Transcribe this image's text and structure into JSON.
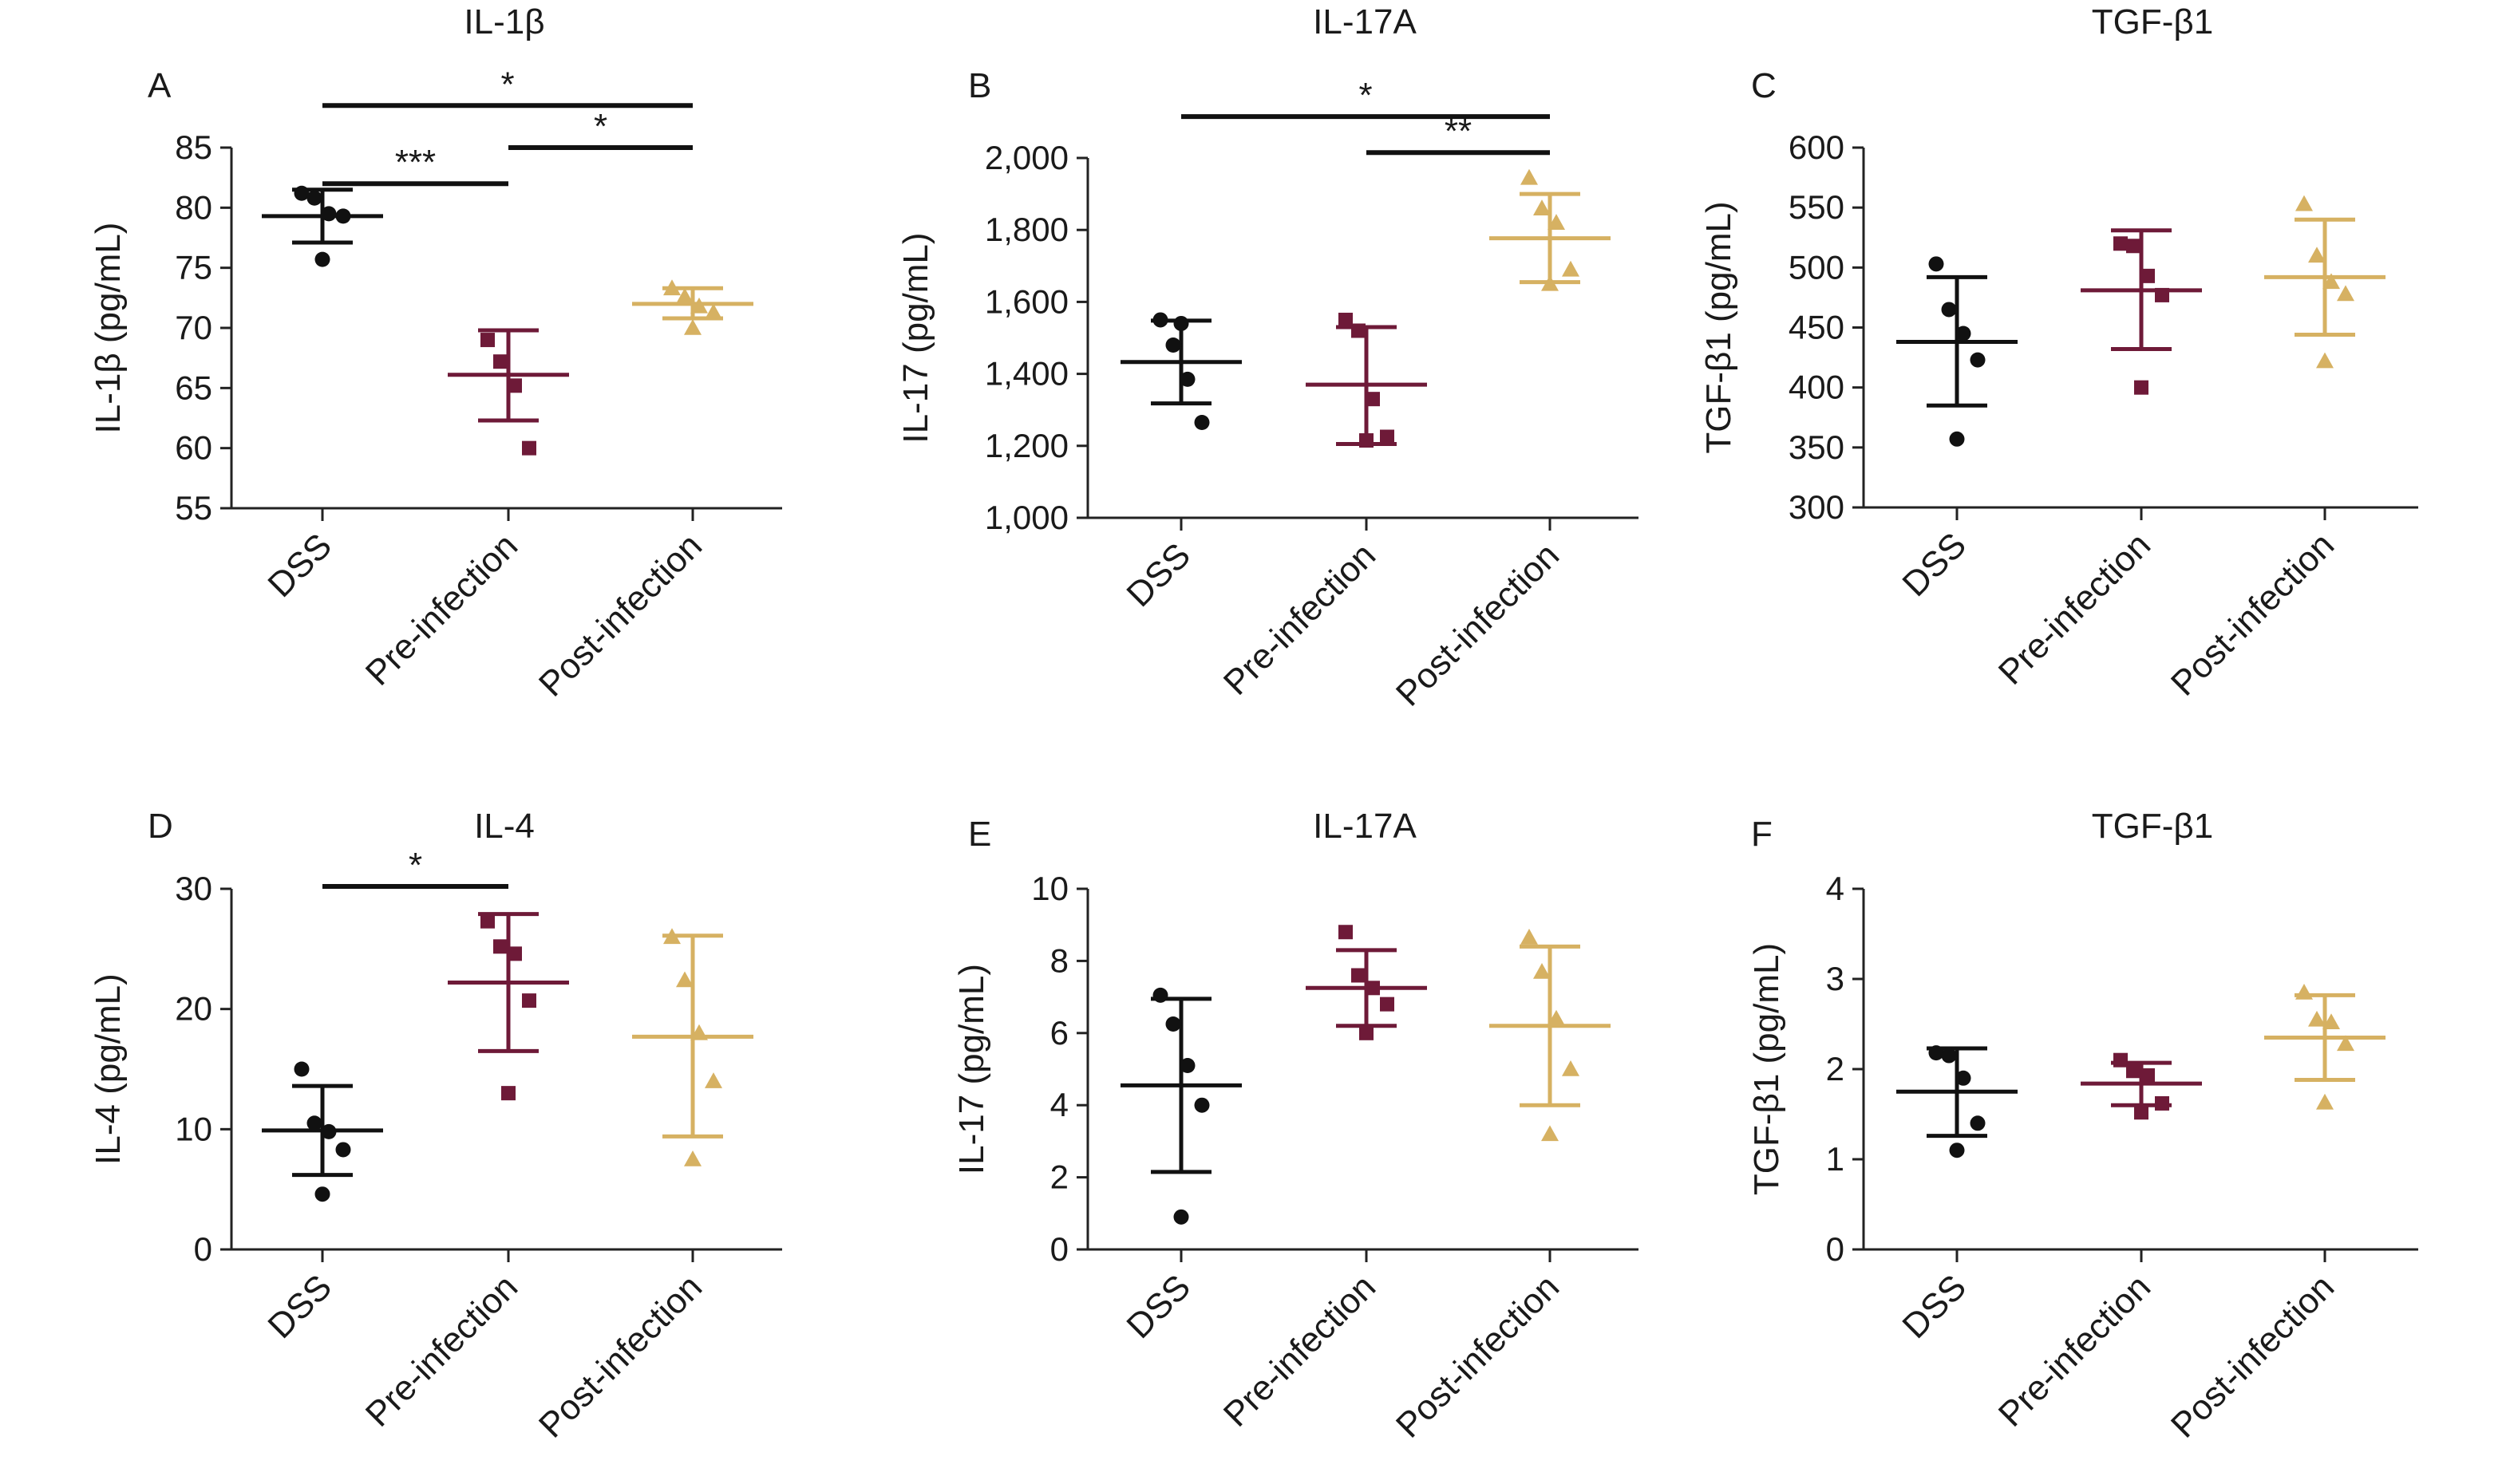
{
  "figure": {
    "colors": {
      "DSS": "#111111",
      "Pre-infection": "#6e1a38",
      "Post-infection": "#d6b162"
    },
    "markers": {
      "DSS": "circle",
      "Pre-infection": "square",
      "Post-infection": "triangle"
    }
  },
  "chart_data": [
    {
      "panel": "A",
      "title": "IL-1β",
      "type": "scatter",
      "ylabel": "IL-1β (pg/mL)",
      "ylim": [
        55,
        85
      ],
      "yticks": [
        55,
        60,
        65,
        70,
        75,
        80,
        85
      ],
      "ytick_labels": [
        "55",
        "60",
        "65",
        "70",
        "75",
        "80",
        "85"
      ],
      "categories": [
        "DSS",
        "Pre-infection",
        "Post-infection"
      ],
      "groups": [
        {
          "name": "DSS",
          "mean": 79.3,
          "sd_low": 77.1,
          "sd_high": 81.5,
          "points": [
            81.2,
            80.8,
            79.5,
            79.3,
            75.7
          ]
        },
        {
          "name": "Pre-infection",
          "mean": 66.1,
          "sd_low": 62.3,
          "sd_high": 69.8,
          "points": [
            69.0,
            67.2,
            65.2,
            60.0
          ]
        },
        {
          "name": "Post-infection",
          "mean": 72.0,
          "sd_low": 70.8,
          "sd_high": 73.3,
          "points": [
            73.3,
            72.6,
            71.8,
            71.3,
            70.0
          ]
        }
      ],
      "significance": [
        {
          "from": 0,
          "to": 1,
          "label": "***",
          "y": 82.0
        },
        {
          "from": 0,
          "to": 2,
          "label": "*",
          "y": 88.5
        },
        {
          "from": 1,
          "to": 2,
          "label": "*",
          "y": 85.0
        }
      ]
    },
    {
      "panel": "B",
      "title": "IL-17A",
      "type": "scatter",
      "ylabel": "IL-17 (pg/mL)",
      "ylim": [
        1000,
        2000
      ],
      "yticks": [
        1000,
        1200,
        1400,
        1600,
        1800,
        2000
      ],
      "ytick_labels": [
        "1,000",
        "1,200",
        "1,400",
        "1,600",
        "1,800",
        "2,000"
      ],
      "categories": [
        "DSS",
        "Pre-infection",
        "Post-infection"
      ],
      "groups": [
        {
          "name": "DSS",
          "mean": 1433,
          "sd_low": 1318,
          "sd_high": 1548,
          "points": [
            1550,
            1480,
            1385,
            1265,
            1540
          ]
        },
        {
          "name": "Pre-infection",
          "mean": 1370,
          "sd_low": 1205,
          "sd_high": 1530,
          "points": [
            1550,
            1520,
            1330,
            1225,
            1215
          ]
        },
        {
          "name": "Post-infection",
          "mean": 1777,
          "sd_low": 1655,
          "sd_high": 1900,
          "points": [
            1945,
            1860,
            1820,
            1690,
            1650
          ]
        }
      ],
      "significance": [
        {
          "from": 0,
          "to": 2,
          "label": "*",
          "y": 2115
        },
        {
          "from": 1,
          "to": 2,
          "label": "**",
          "y": 2015
        }
      ]
    },
    {
      "panel": "C",
      "title": "TGF-β1",
      "type": "scatter",
      "ylabel": "TGF-β1 (pg/mL)",
      "ylim": [
        300,
        600
      ],
      "yticks": [
        300,
        350,
        400,
        450,
        500,
        550,
        600
      ],
      "ytick_labels": [
        "300",
        "350",
        "400",
        "450",
        "500",
        "550",
        "600"
      ],
      "categories": [
        "DSS",
        "Pre-infection",
        "Post-infection"
      ],
      "groups": [
        {
          "name": "DSS",
          "mean": 438,
          "sd_low": 385,
          "sd_high": 492,
          "points": [
            503,
            465,
            445,
            423,
            357
          ]
        },
        {
          "name": "Pre-infection",
          "mean": 481,
          "sd_low": 432,
          "sd_high": 531,
          "points": [
            520,
            518,
            493,
            477,
            400
          ]
        },
        {
          "name": "Post-infection",
          "mean": 492,
          "sd_low": 444,
          "sd_high": 540,
          "points": [
            553,
            510,
            488,
            478,
            422
          ]
        }
      ],
      "significance": []
    },
    {
      "panel": "D",
      "title": "IL-4",
      "type": "scatter",
      "ylabel": "IL-4 (pg/mL)",
      "ylim": [
        0,
        30
      ],
      "yticks": [
        0,
        10,
        20,
        30
      ],
      "ytick_labels": [
        "0",
        "10",
        "20",
        "30"
      ],
      "categories": [
        "DSS",
        "Pre-infection",
        "Post-infection"
      ],
      "groups": [
        {
          "name": "DSS",
          "mean": 9.9,
          "sd_low": 6.2,
          "sd_high": 13.6,
          "points": [
            15.0,
            10.5,
            9.8,
            8.3,
            4.6
          ]
        },
        {
          "name": "Pre-infection",
          "mean": 22.2,
          "sd_low": 16.5,
          "sd_high": 27.9,
          "points": [
            27.3,
            25.2,
            24.6,
            20.7,
            13.0
          ]
        },
        {
          "name": "Post-infection",
          "mean": 17.7,
          "sd_low": 9.4,
          "sd_high": 26.1,
          "points": [
            26.0,
            22.4,
            18.0,
            14.0,
            7.5
          ]
        }
      ],
      "significance": [
        {
          "from": 0,
          "to": 1,
          "label": "*",
          "y": 30.2
        }
      ]
    },
    {
      "panel": "E",
      "title": "IL-17A",
      "type": "scatter",
      "ylabel": "IL-17 (pg/mL)",
      "ylim": [
        0,
        10
      ],
      "yticks": [
        0,
        2,
        4,
        6,
        8,
        10
      ],
      "ytick_labels": [
        "0",
        "2",
        "4",
        "6",
        "8",
        "10"
      ],
      "categories": [
        "DSS",
        "Pre-infection",
        "Post-infection"
      ],
      "groups": [
        {
          "name": "DSS",
          "mean": 4.55,
          "sd_low": 2.15,
          "sd_high": 6.95,
          "points": [
            7.05,
            6.25,
            5.1,
            4.0,
            0.9
          ]
        },
        {
          "name": "Pre-infection",
          "mean": 7.25,
          "sd_low": 6.2,
          "sd_high": 8.3,
          "points": [
            8.8,
            7.6,
            7.25,
            6.8,
            6.0
          ]
        },
        {
          "name": "Post-infection",
          "mean": 6.2,
          "sd_low": 4.0,
          "sd_high": 8.4,
          "points": [
            8.65,
            7.7,
            6.4,
            5.0,
            3.2
          ]
        }
      ],
      "significance": []
    },
    {
      "panel": "F",
      "title": "TGF-β1",
      "type": "scatter",
      "ylabel": "TGF-β1 (pg/mL)",
      "ylim": [
        0,
        4
      ],
      "yticks": [
        0,
        1,
        2,
        3,
        4
      ],
      "ytick_labels": [
        "0",
        "1",
        "2",
        "3",
        "4"
      ],
      "categories": [
        "DSS",
        "Pre-infection",
        "Post-infection"
      ],
      "groups": [
        {
          "name": "DSS",
          "mean": 1.75,
          "sd_low": 1.26,
          "sd_high": 2.23,
          "points": [
            2.18,
            2.15,
            1.9,
            1.4,
            1.1
          ]
        },
        {
          "name": "Pre-infection",
          "mean": 1.84,
          "sd_low": 1.6,
          "sd_high": 2.07,
          "points": [
            2.1,
            1.98,
            1.93,
            1.62,
            1.52
          ]
        },
        {
          "name": "Post-infection",
          "mean": 2.35,
          "sd_low": 1.88,
          "sd_high": 2.82,
          "points": [
            2.85,
            2.55,
            2.52,
            2.28,
            1.63
          ]
        }
      ],
      "significance": []
    }
  ]
}
